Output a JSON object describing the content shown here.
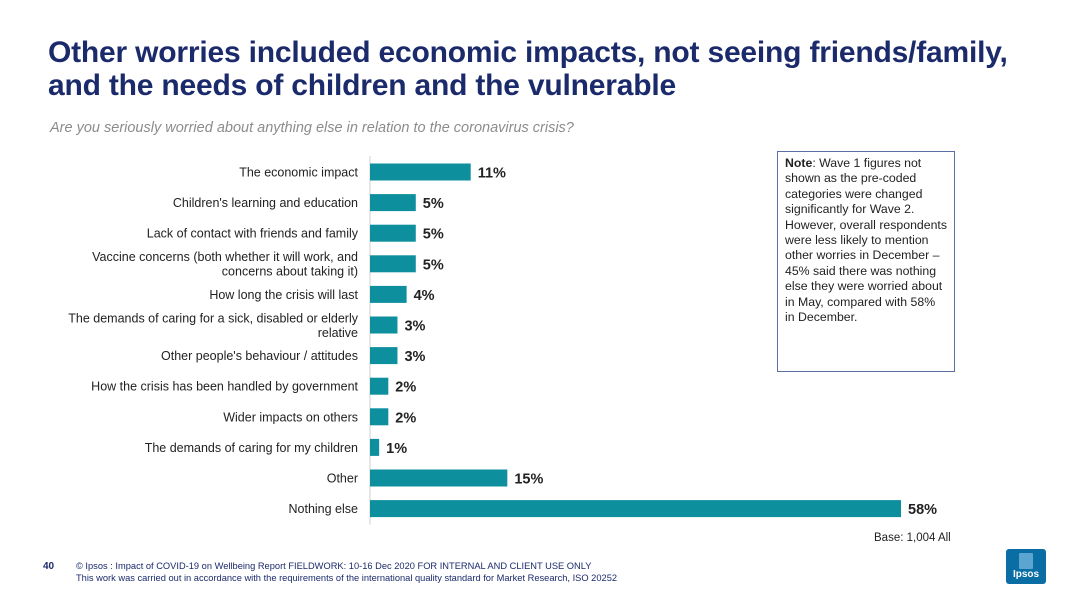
{
  "header": {
    "title": "Other worries included economic impacts, not seeing friends/family, and the needs of children and the vulnerable",
    "subtitle": "Are you seriously worried about anything else in relation to the coronavirus crisis?"
  },
  "chart_data": {
    "type": "bar",
    "orientation": "horizontal",
    "categories": [
      [
        "The economic impact"
      ],
      [
        "Children's learning and education"
      ],
      [
        "Lack of contact with friends and family"
      ],
      [
        "Vaccine concerns (both whether it will work, and",
        "concerns about taking it)"
      ],
      [
        "How long the crisis will last"
      ],
      [
        "The demands of caring for a sick, disabled or elderly",
        "relative"
      ],
      [
        "Other people's behaviour / attitudes"
      ],
      [
        "How the crisis has been handled by government"
      ],
      [
        "Wider impacts on others"
      ],
      [
        "The demands of caring for my children"
      ],
      [
        "Other"
      ],
      [
        "Nothing else"
      ]
    ],
    "values": [
      11,
      5,
      5,
      5,
      4,
      3,
      3,
      2,
      2,
      1,
      15,
      58
    ],
    "value_labels": [
      "11%",
      "5%",
      "5%",
      "5%",
      "4%",
      "3%",
      "3%",
      "2%",
      "2%",
      "1%",
      "15%",
      "58%"
    ],
    "xlim": [
      0,
      58
    ],
    "bar_color": "#0e8f9e",
    "grid": false,
    "legend": "none"
  },
  "note": {
    "label": "Note",
    "text": ": Wave 1 figures not shown as the pre-coded categories were changed significantly for Wave 2. However, overall respondents were less likely to mention other worries in December – 45% said there was nothing else they were worried about in May, compared with 58% in December."
  },
  "base": "Base: 1,004 All",
  "footer": {
    "page_number": "40",
    "line1": "© Ipsos : Impact of COVID-19 on Wellbeing Report FIELDWORK: 10-16 Dec 2020 FOR INTERNAL AND CLIENT USE ONLY",
    "line2": "This work was carried out in accordance with the requirements of the international quality standard for Market Research, ISO 20252"
  },
  "logo": {
    "text": "Ipsos"
  },
  "colors": {
    "title": "#1b2a6b",
    "bar": "#0e8f9e"
  }
}
